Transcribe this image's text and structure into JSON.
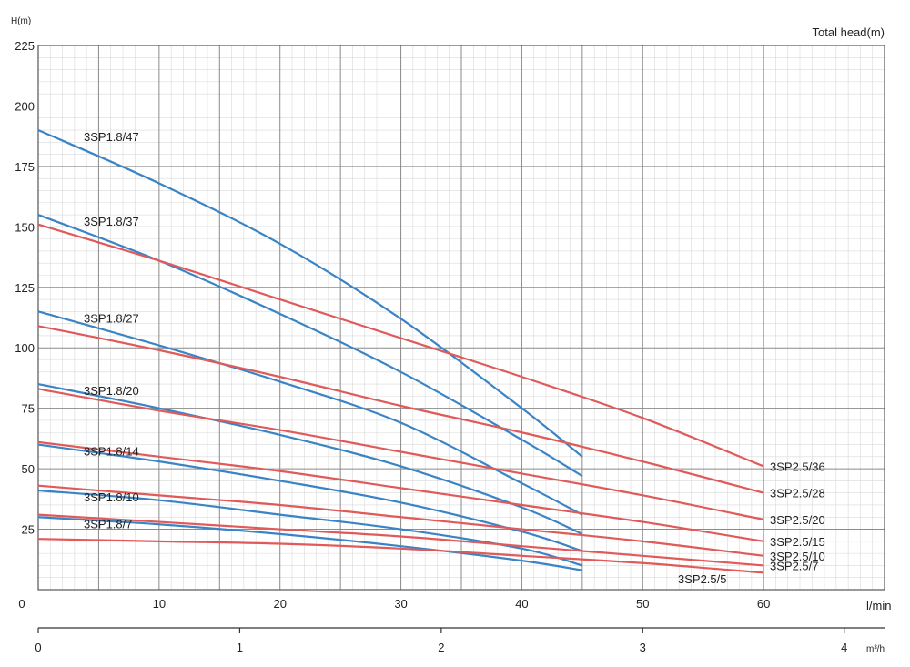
{
  "chart_data": {
    "type": "line",
    "title": "Total head(m)",
    "ylabel": "H(m)",
    "x_unit": "l/min",
    "x2_unit": "m³/h",
    "xlim": [
      0,
      70
    ],
    "ylim": [
      0,
      225
    ],
    "x2lim": [
      0,
      4.2
    ],
    "x_ticks": [
      "10",
      "20",
      "30",
      "40",
      "50",
      "60"
    ],
    "x_zero_label": "0",
    "y_ticks": [
      "25",
      "50",
      "75",
      "100",
      "125",
      "150",
      "175",
      "200",
      "225"
    ],
    "x2_ticks": [
      "0",
      "1",
      "2",
      "3",
      "4"
    ],
    "grid": true,
    "series": [
      {
        "name": "3SP1.8/47",
        "color": "#3a84c6",
        "x": [
          0,
          10,
          20,
          30,
          40,
          45
        ],
        "y": [
          190,
          168,
          143,
          112,
          75,
          55
        ]
      },
      {
        "name": "3SP1.8/37",
        "color": "#3a84c6",
        "x": [
          0,
          10,
          20,
          30,
          40,
          45
        ],
        "y": [
          155,
          136,
          114,
          90,
          62,
          47
        ]
      },
      {
        "name": "3SP1.8/27",
        "color": "#3a84c6",
        "x": [
          0,
          10,
          20,
          30,
          40,
          45
        ],
        "y": [
          115,
          101,
          86,
          69,
          44,
          31
        ]
      },
      {
        "name": "3SP1.8/20",
        "color": "#3a84c6",
        "x": [
          0,
          10,
          20,
          30,
          40,
          45
        ],
        "y": [
          85,
          75,
          64,
          51,
          34,
          23
        ]
      },
      {
        "name": "3SP1.8/14",
        "color": "#3a84c6",
        "x": [
          0,
          10,
          20,
          30,
          40,
          45
        ],
        "y": [
          60,
          53,
          45,
          36,
          24,
          16
        ]
      },
      {
        "name": "3SP1.8/10",
        "color": "#3a84c6",
        "x": [
          0,
          10,
          20,
          30,
          40,
          45
        ],
        "y": [
          41,
          37,
          31,
          25,
          17,
          10
        ]
      },
      {
        "name": "3SP1.8/7",
        "color": "#3a84c6",
        "x": [
          0,
          10,
          20,
          30,
          40,
          45
        ],
        "y": [
          30,
          27,
          23,
          18,
          12,
          8
        ]
      },
      {
        "name": "3SP2.5/36",
        "color": "#e05a5a",
        "x": [
          0,
          10,
          20,
          30,
          40,
          50,
          60
        ],
        "y": [
          151,
          136,
          120,
          104,
          88,
          71,
          51
        ]
      },
      {
        "name": "3SP2.5/28",
        "color": "#e05a5a",
        "x": [
          0,
          10,
          20,
          30,
          40,
          50,
          60
        ],
        "y": [
          109,
          99,
          88,
          76,
          65,
          53,
          40
        ]
      },
      {
        "name": "3SP2.5/20",
        "color": "#e05a5a",
        "x": [
          0,
          10,
          20,
          30,
          40,
          50,
          60
        ],
        "y": [
          83,
          74,
          66,
          57,
          48,
          39,
          29
        ]
      },
      {
        "name": "3SP2.5/15",
        "color": "#e05a5a",
        "x": [
          0,
          10,
          20,
          30,
          40,
          50,
          60
        ],
        "y": [
          61,
          55,
          49,
          42,
          35,
          28,
          20
        ]
      },
      {
        "name": "3SP2.5/10",
        "color": "#e05a5a",
        "x": [
          0,
          10,
          20,
          30,
          40,
          50,
          60
        ],
        "y": [
          43,
          39,
          35,
          30,
          25,
          20,
          14
        ]
      },
      {
        "name": "3SP2.5/7",
        "color": "#e05a5a",
        "x": [
          0,
          10,
          20,
          30,
          40,
          50,
          60
        ],
        "y": [
          31,
          28,
          25,
          22,
          18,
          14,
          10
        ]
      },
      {
        "name": "3SP2.5/5",
        "color": "#e05a5a",
        "x": [
          0,
          10,
          20,
          30,
          40,
          50,
          60
        ],
        "y": [
          21,
          20,
          19,
          17,
          14,
          11,
          7
        ]
      }
    ]
  }
}
